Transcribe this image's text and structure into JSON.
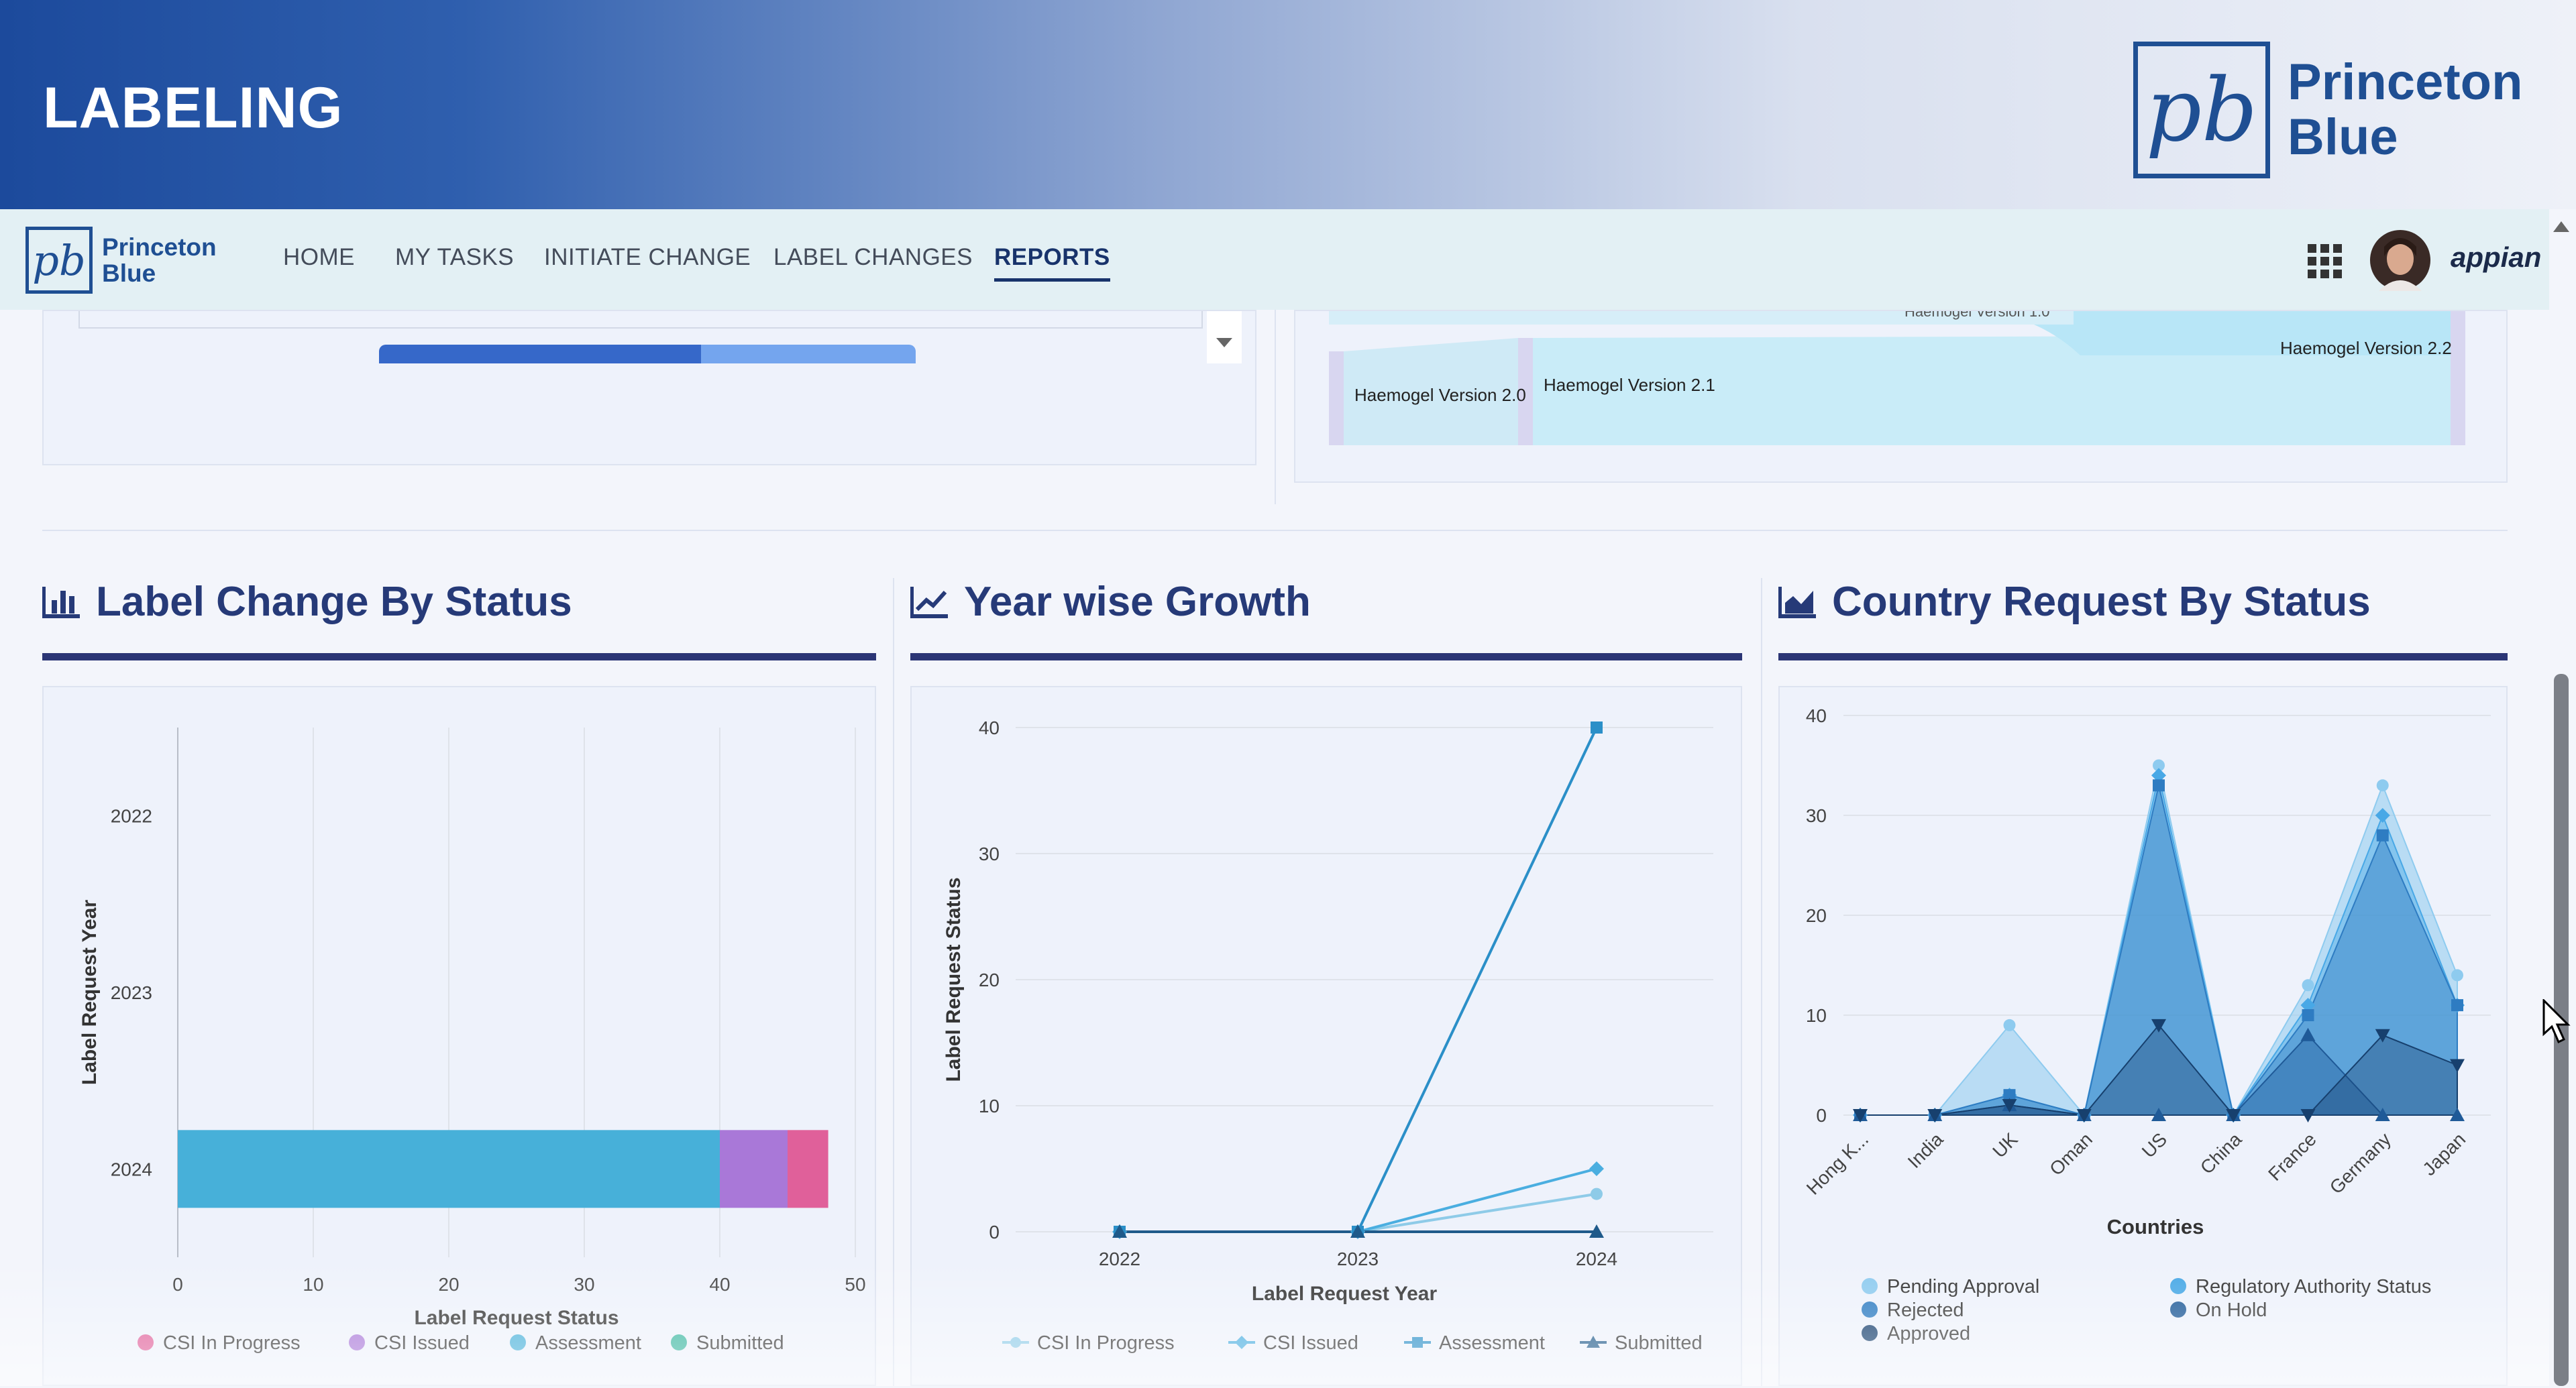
{
  "banner": {
    "title": "LABELING",
    "brand_line1": "Princeton",
    "brand_line2": "Blue"
  },
  "nav": {
    "logo_line1": "Princeton",
    "logo_line2": "Blue",
    "items": [
      "HOME",
      "MY TASKS",
      "INITIATE CHANGE",
      "LABEL CHANGES",
      "REPORTS"
    ],
    "active": "REPORTS",
    "appian_label": "appian",
    "icons": [
      "grid-apps-icon",
      "avatar"
    ]
  },
  "top_right_panel": {
    "labels": [
      "Haemogel Version 2.0",
      "Haemogel Version 2.1",
      "Haemogel Version 2.2",
      "Haemogel Version 1.0"
    ]
  },
  "sections": [
    {
      "title": "Label Change By Status",
      "icon": "bar-chart-icon"
    },
    {
      "title": "Year wise Growth",
      "icon": "line-chart-icon"
    },
    {
      "title": "Country Request By Status",
      "icon": "area-chart-icon"
    }
  ],
  "colors": {
    "accent": "#263a78",
    "banner_start": "#1c4a9c"
  },
  "chart_data": [
    {
      "type": "bar",
      "orientation": "horizontal",
      "stacked": true,
      "categories": [
        "2022",
        "2023",
        "2024"
      ],
      "xlabel": "Label Request Status",
      "ylabel": "Label Request Year",
      "xlim": [
        0,
        50
      ],
      "xticks": [
        "0",
        "10",
        "20",
        "30",
        "40",
        "50"
      ],
      "series": [
        {
          "name": "CSI In Progress",
          "color": "#e0609a",
          "values": [
            0,
            0,
            3
          ]
        },
        {
          "name": "CSI Issued",
          "color": "#a978d8",
          "values": [
            0,
            0,
            5
          ]
        },
        {
          "name": "Assessment",
          "color": "#47b0d9",
          "values": [
            0,
            0,
            40
          ]
        },
        {
          "name": "Submitted",
          "color": "#3ab6a0",
          "values": [
            0,
            0,
            0
          ]
        }
      ],
      "legend_position": "bottom"
    },
    {
      "type": "line",
      "x": [
        "2022",
        "2023",
        "2024"
      ],
      "xlabel": "Label Request Year",
      "ylabel": "Label Request Status",
      "ylim": [
        0,
        40
      ],
      "yticks": [
        "0",
        "10",
        "20",
        "30",
        "40"
      ],
      "series": [
        {
          "name": "CSI In Progress",
          "color": "#8ecbe8",
          "marker": "circle",
          "values": [
            0,
            0,
            3
          ]
        },
        {
          "name": "CSI Issued",
          "color": "#4aaee0",
          "marker": "diamond",
          "values": [
            0,
            0,
            5
          ]
        },
        {
          "name": "Assessment",
          "color": "#2b8fc8",
          "marker": "square",
          "values": [
            0,
            0,
            40
          ]
        },
        {
          "name": "Submitted",
          "color": "#1f5a8a",
          "marker": "triangle",
          "values": [
            0,
            0,
            0
          ]
        }
      ],
      "legend_position": "bottom"
    },
    {
      "type": "area",
      "categories": [
        "Hong K...",
        "India",
        "UK",
        "Oman",
        "US",
        "China",
        "France",
        "Germany",
        "Japan"
      ],
      "xlabel": "Countries",
      "ylabel": "",
      "ylim": [
        0,
        40
      ],
      "yticks": [
        "0",
        "10",
        "20",
        "30",
        "40"
      ],
      "series": [
        {
          "name": "Pending Approval",
          "color": "#8ecbef",
          "marker": "circle",
          "values": [
            0,
            0,
            9,
            0,
            35,
            0,
            13,
            33,
            14
          ]
        },
        {
          "name": "Regulatory Authority Status",
          "color": "#48a8e6",
          "marker": "diamond",
          "values": [
            0,
            0,
            2,
            0,
            34,
            0,
            11,
            30,
            11
          ]
        },
        {
          "name": "Rejected",
          "color": "#2e7cc2",
          "marker": "square",
          "values": [
            0,
            0,
            2,
            0,
            33,
            0,
            10,
            28,
            11
          ]
        },
        {
          "name": "On Hold",
          "color": "#1f5a98",
          "marker": "triangle",
          "values": [
            0,
            0,
            1,
            0,
            0,
            0,
            8,
            0,
            0
          ]
        },
        {
          "name": "Approved",
          "color": "#17406e",
          "marker": "triangle-down",
          "values": [
            0,
            0,
            1,
            0,
            9,
            0,
            0,
            8,
            5
          ]
        }
      ],
      "legend_position": "bottom"
    }
  ]
}
